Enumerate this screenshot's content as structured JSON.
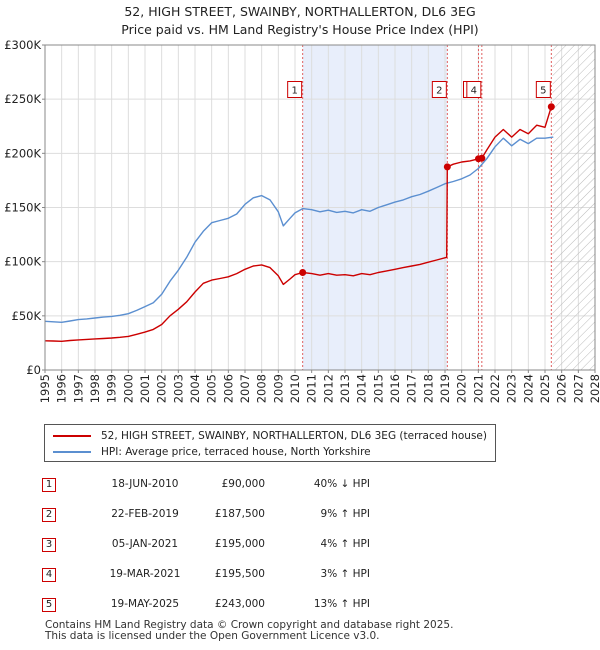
{
  "title_line1": "52, HIGH STREET, SWAINBY, NORTHALLERTON, DL6 3EG",
  "title_line2": "Price paid vs. HM Land Registry's House Price Index (HPI)",
  "colors": {
    "property": "#cc0000",
    "hpi": "#5b8fd0",
    "shade": "#e8eefb",
    "marker_line": "#e06060",
    "grid": "#dddddd"
  },
  "chart_data": {
    "type": "line",
    "title": "52, HIGH STREET, SWAINBY, NORTHALLERTON, DL6 3EG",
    "subtitle": "Price paid vs. HM Land Registry's House Price Index (HPI)",
    "xlabel": "",
    "ylabel": "",
    "xlim": [
      1995,
      2028
    ],
    "ylim": [
      0,
      300000
    ],
    "grid": true,
    "y_ticks": [
      0,
      50000,
      100000,
      150000,
      200000,
      250000,
      300000
    ],
    "y_tick_labels": [
      "£0",
      "£50K",
      "£100K",
      "£150K",
      "£200K",
      "£250K",
      "£300K"
    ],
    "x_ticks": [
      1995,
      1996,
      1997,
      1998,
      1999,
      2000,
      2001,
      2002,
      2003,
      2004,
      2005,
      2006,
      2007,
      2008,
      2009,
      2010,
      2011,
      2012,
      2013,
      2014,
      2015,
      2016,
      2017,
      2018,
      2019,
      2020,
      2021,
      2022,
      2023,
      2024,
      2025,
      2026,
      2027,
      2028
    ],
    "x_tick_labels": [
      "1995",
      "1996",
      "1997",
      "1998",
      "1999",
      "2000",
      "2001",
      "2002",
      "2003",
      "2004",
      "2005",
      "2006",
      "2007",
      "2008",
      "2009",
      "2010",
      "2011",
      "2012",
      "2013",
      "2014",
      "2015",
      "2016",
      "2017",
      "2018",
      "2019",
      "2020",
      "2021",
      "2022",
      "2023",
      "2024",
      "2025",
      "2026",
      "2027",
      "2028"
    ],
    "shaded_region": [
      2010.46,
      2019.14
    ],
    "forecast_start": 2025.45,
    "series": [
      {
        "name": "52, HIGH STREET, SWAINBY, NORTHALLERTON, DL6 3EG (terraced house)",
        "x": [
          1995.0,
          1995.5,
          1996.0,
          1996.5,
          1997.0,
          1997.5,
          1998.0,
          1998.5,
          1999.0,
          1999.5,
          2000.0,
          2000.5,
          2001.0,
          2001.5,
          2002.0,
          2002.5,
          2003.0,
          2003.5,
          2004.0,
          2004.5,
          2005.0,
          2005.5,
          2006.0,
          2006.5,
          2007.0,
          2007.5,
          2008.0,
          2008.5,
          2009.0,
          2009.3,
          2009.7,
          2010.0,
          2010.46,
          2011.0,
          2011.5,
          2012.0,
          2012.5,
          2013.0,
          2013.5,
          2014.0,
          2014.5,
          2015.0,
          2015.5,
          2016.0,
          2016.5,
          2017.0,
          2017.5,
          2018.0,
          2018.5,
          2019.1,
          2019.14,
          2019.5,
          2020.0,
          2020.5,
          2021.01,
          2021.21,
          2021.5,
          2022.0,
          2022.5,
          2023.0,
          2023.5,
          2024.0,
          2024.5,
          2025.0,
          2025.38,
          2025.5
        ],
        "values": [
          27000,
          26800,
          26500,
          27200,
          27800,
          28200,
          28700,
          29100,
          29500,
          30200,
          31000,
          33000,
          35000,
          37500,
          42000,
          50000,
          56000,
          63000,
          72000,
          80000,
          83000,
          84500,
          86000,
          89000,
          93000,
          96000,
          97000,
          94500,
          87000,
          79000,
          84000,
          88000,
          90000,
          89000,
          87500,
          89000,
          87500,
          88000,
          87000,
          89000,
          88000,
          90000,
          91500,
          93000,
          94500,
          96000,
          97500,
          99500,
          101500,
          104000,
          187500,
          190000,
          192000,
          193000,
          195000,
          195500,
          203000,
          215000,
          222000,
          215000,
          222000,
          218000,
          226000,
          224000,
          243000,
          243000
        ]
      },
      {
        "name": "HPI: Average price, terraced house, North Yorkshire",
        "x": [
          1995.0,
          1995.5,
          1996.0,
          1996.5,
          1997.0,
          1997.5,
          1998.0,
          1998.5,
          1999.0,
          1999.5,
          2000.0,
          2000.5,
          2001.0,
          2001.5,
          2002.0,
          2002.5,
          2003.0,
          2003.5,
          2004.0,
          2004.5,
          2005.0,
          2005.5,
          2006.0,
          2006.5,
          2007.0,
          2007.5,
          2008.0,
          2008.5,
          2009.0,
          2009.3,
          2009.7,
          2010.0,
          2010.46,
          2011.0,
          2011.5,
          2012.0,
          2012.5,
          2013.0,
          2013.5,
          2014.0,
          2014.5,
          2015.0,
          2015.5,
          2016.0,
          2016.5,
          2017.0,
          2017.5,
          2018.0,
          2018.5,
          2019.0,
          2019.5,
          2020.0,
          2020.5,
          2021.0,
          2021.5,
          2022.0,
          2022.5,
          2023.0,
          2023.5,
          2024.0,
          2024.5,
          2025.0,
          2025.5
        ],
        "values": [
          45000,
          44500,
          44000,
          45200,
          46500,
          47200,
          48000,
          48800,
          49500,
          50500,
          52000,
          55000,
          58500,
          62000,
          70000,
          82000,
          92000,
          104000,
          118000,
          128000,
          136000,
          138000,
          140000,
          144000,
          153000,
          159000,
          161000,
          157000,
          146000,
          133000,
          140000,
          145000,
          149000,
          148000,
          146000,
          147500,
          145500,
          146500,
          145000,
          148000,
          146500,
          150000,
          152500,
          155000,
          157000,
          160000,
          162000,
          165000,
          168500,
          172000,
          174000,
          176500,
          180000,
          186000,
          195000,
          206000,
          214000,
          207000,
          213000,
          209000,
          214000,
          214000,
          215000
        ]
      }
    ],
    "sales": [
      {
        "id": "1",
        "x": 2010.46,
        "price": 90000
      },
      {
        "id": "2",
        "x": 2019.14,
        "price": 187500
      },
      {
        "id": "3",
        "x": 2021.01,
        "price": 195000
      },
      {
        "id": "4",
        "x": 2021.21,
        "price": 195500
      },
      {
        "id": "5",
        "x": 2025.38,
        "price": 243000
      }
    ]
  },
  "legend": {
    "property_label": "52, HIGH STREET, SWAINBY, NORTHALLERTON, DL6 3EG (terraced house)",
    "hpi_label": "HPI: Average price, terraced house, North Yorkshire"
  },
  "transactions": [
    {
      "num": "1",
      "date": "18-JUN-2010",
      "price": "£90,000",
      "hpi": "40% ↓ HPI"
    },
    {
      "num": "2",
      "date": "22-FEB-2019",
      "price": "£187,500",
      "hpi": "9% ↑ HPI"
    },
    {
      "num": "3",
      "date": "05-JAN-2021",
      "price": "£195,000",
      "hpi": "4% ↑ HPI"
    },
    {
      "num": "4",
      "date": "19-MAR-2021",
      "price": "£195,500",
      "hpi": "3% ↑ HPI"
    },
    {
      "num": "5",
      "date": "19-MAY-2025",
      "price": "£243,000",
      "hpi": "13% ↑ HPI"
    }
  ],
  "footer": {
    "line1": "Contains HM Land Registry data © Crown copyright and database right 2025.",
    "line2": "This data is licensed under the Open Government Licence v3.0."
  }
}
